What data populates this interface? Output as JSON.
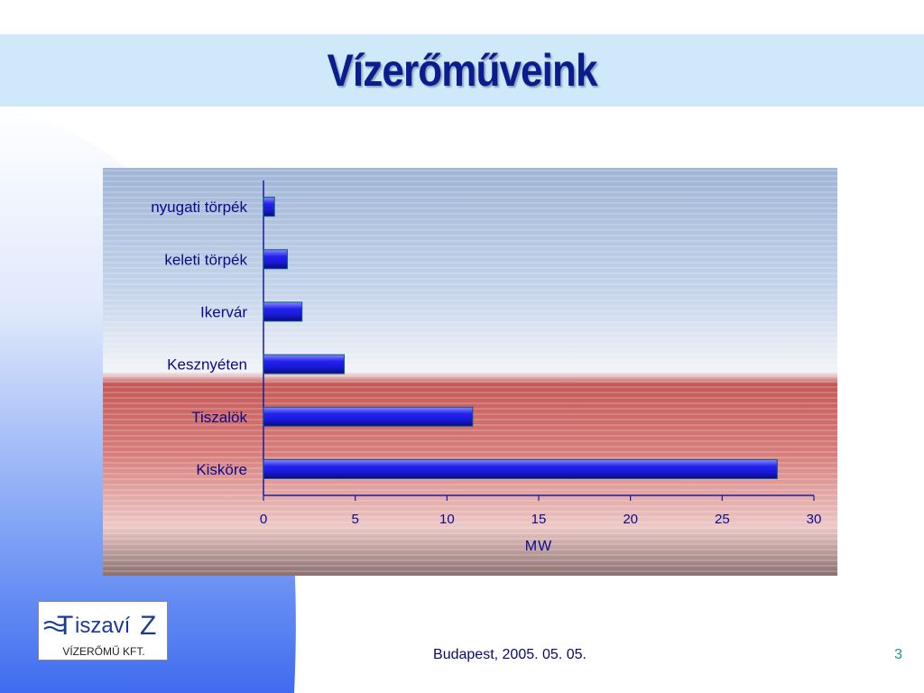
{
  "slide": {
    "title": "Vízerőműveink",
    "footer_date": "Budapest, 2005. 05. 05.",
    "page_number": "3"
  },
  "logo": {
    "name": "TiszavíZ",
    "subtitle": "VÍZERŐMŰ KFT."
  },
  "colors": {
    "title": "#0b1c8c",
    "title_band": "#cfe9fb",
    "bar": "#1a1ae0",
    "label": "#0a0a8a"
  },
  "chart_data": {
    "type": "bar",
    "orientation": "horizontal",
    "categories": [
      "nyugati törpék",
      "keleti törpék",
      "Ikervár",
      "Kesznyéten",
      "Tiszalök",
      "Kisköre"
    ],
    "values": [
      0.6,
      1.3,
      2.1,
      4.4,
      11.4,
      28
    ],
    "xlabel": "MW",
    "xlim": [
      0,
      30
    ],
    "xticks": [
      0,
      5,
      10,
      15,
      20,
      25,
      30
    ],
    "grid": false,
    "legend": "none"
  }
}
